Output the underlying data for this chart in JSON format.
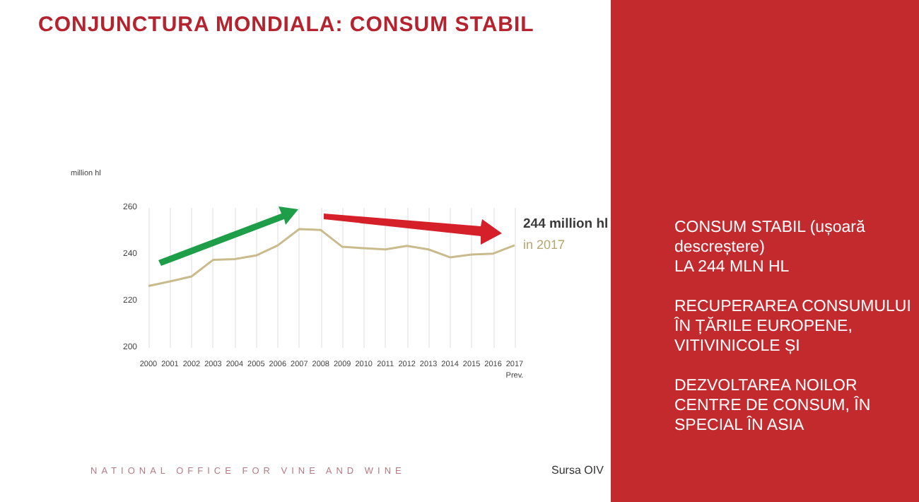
{
  "chart_data": {
    "type": "line",
    "title": "CONJUNCTURA MONDIALA: CONSUM STABIL",
    "ylabel": "million hl",
    "categories": [
      "2000",
      "2001",
      "2002",
      "2003",
      "2004",
      "2005",
      "2006",
      "2007",
      "2008",
      "2009",
      "2010",
      "2011",
      "2012",
      "2013",
      "2014",
      "2015",
      "2016",
      "2017\nPrev."
    ],
    "series": [
      {
        "color": "#c9bb8c",
        "values": [
          226.5,
          228.5,
          230.6,
          237.7,
          238,
          239.6,
          243.9,
          250.9,
          250.5,
          243.3,
          242.7,
          242.2,
          243.7,
          242.2,
          238.8,
          240,
          240.4,
          244
        ]
      }
    ],
    "ylim": [
      200,
      260
    ],
    "yticks": [
      200,
      220,
      240,
      260
    ],
    "grid": "x",
    "marker": "none",
    "line_style": "solid",
    "annotations": [
      {
        "text": "244 million hl",
        "x": "2017\nPrev.",
        "y": 244
      },
      "in 2017",
      "CONSUM STABIL (ușoară descreștere)\nLA 244 MLN HL",
      "RECUPERAREA CONSUMULUI ÎN ȚĂRILE EUROPENE, VITIVINICOLE ȘI",
      "DEZVOLTAREA NOILOR CENTRE DE CONSUM, ÎN SPECIAL ÎN ASIA",
      "NATIONAL OFFICE FOR VINE AND WINE",
      "Sursa OIV"
    ]
  }
}
